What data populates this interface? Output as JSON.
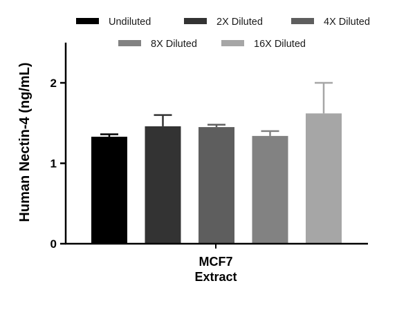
{
  "chart_data": {
    "type": "bar",
    "categories": [
      "MCF7 Extract"
    ],
    "category_lines": [
      "MCF7",
      "Extract"
    ],
    "series": [
      {
        "name": "Undiluted",
        "value": 1.33,
        "error": 0.03,
        "color": "#000000"
      },
      {
        "name": "2X Diluted",
        "value": 1.46,
        "error": 0.14,
        "color": "#333333"
      },
      {
        "name": "4X Diluted",
        "value": 1.45,
        "error": 0.03,
        "color": "#5e5e5e"
      },
      {
        "name": "8X Diluted",
        "value": 1.34,
        "error": 0.06,
        "color": "#828282"
      },
      {
        "name": "16X Diluted",
        "value": 1.62,
        "error": 0.38,
        "color": "#a6a6a6"
      }
    ],
    "ylabel": "Human Nectin-4 (ng/mL)",
    "xlabel": "",
    "ylim": [
      0,
      2.5
    ],
    "yticks": [
      0,
      1,
      2
    ],
    "ytick_labels": [
      "0",
      "1",
      "2"
    ],
    "grid": false,
    "legend_position": "top"
  }
}
